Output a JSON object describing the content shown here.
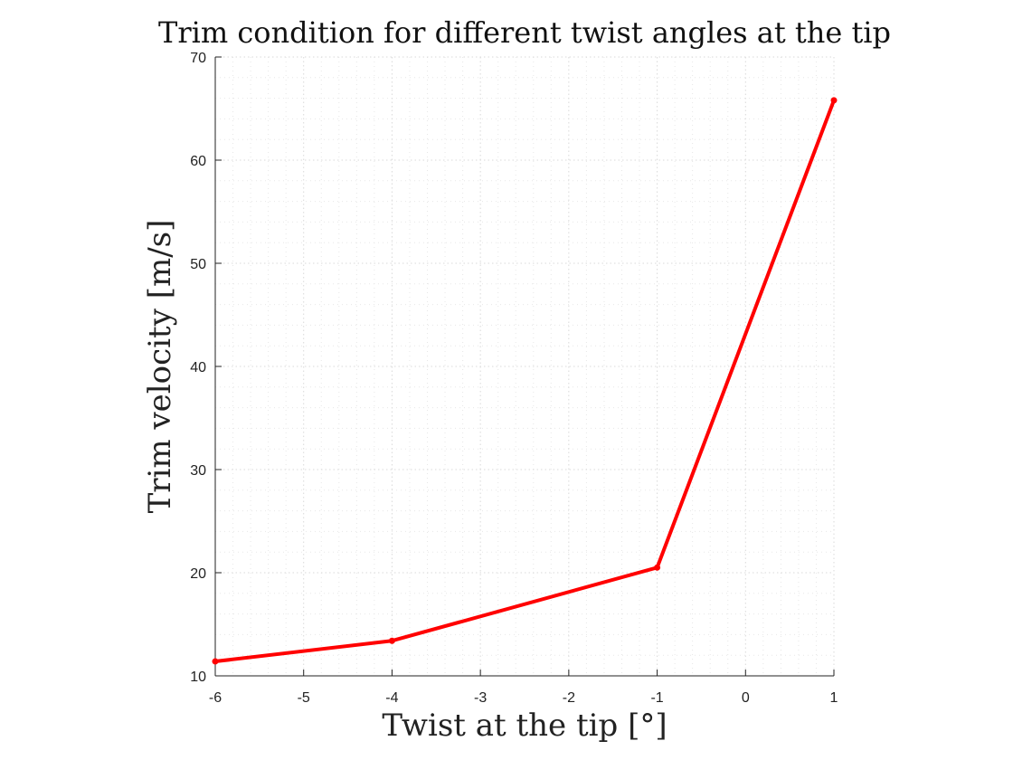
{
  "chart_data": {
    "type": "line",
    "title": "Trim condition for different twist angles at the tip",
    "xlabel": "Twist at the tip [°]",
    "ylabel": "Trim velocity [m/s]",
    "xlim": [
      -6,
      1
    ],
    "ylim": [
      10,
      70
    ],
    "x_ticks": [
      -6,
      -5,
      -4,
      -3,
      -2,
      -1,
      0,
      1
    ],
    "y_ticks": [
      10,
      20,
      30,
      40,
      50,
      60,
      70
    ],
    "grid": "on",
    "minor_grid": "on",
    "series": [
      {
        "x": [
          -6,
          -4,
          -1,
          1
        ],
        "y": [
          11.4,
          13.4,
          20.5,
          65.8
        ],
        "color": "#ff0000",
        "marker": "dot"
      }
    ]
  }
}
